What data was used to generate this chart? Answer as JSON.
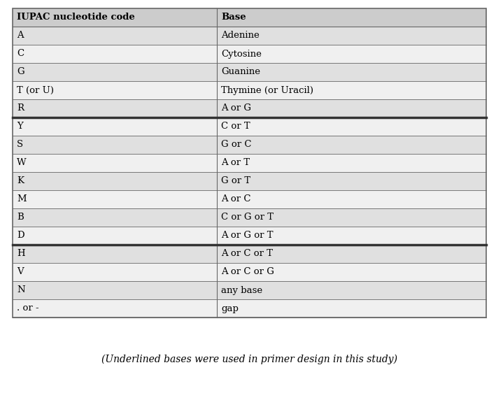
{
  "col1_header": "IUPAC nucleotide code",
  "col2_header": "Base",
  "rows": [
    [
      "A",
      "Adenine"
    ],
    [
      "C",
      "Cytosine"
    ],
    [
      "G",
      "Guanine"
    ],
    [
      "T (or U)",
      "Thymine (or Uracil)"
    ],
    [
      "R",
      "A or G"
    ],
    [
      "Y",
      "C or T"
    ],
    [
      "S",
      "G or C"
    ],
    [
      "W",
      "A or T"
    ],
    [
      "K",
      "G or T"
    ],
    [
      "M",
      "A or C"
    ],
    [
      "B",
      "C or G or T"
    ],
    [
      "D",
      "A or G or T"
    ],
    [
      "H",
      "A or C or T"
    ],
    [
      "V",
      "A or C or G"
    ],
    [
      "N",
      "any base"
    ],
    [
      ". or -",
      "gap"
    ]
  ],
  "thick_line_rows": [
    4,
    11
  ],
  "caption": "(Underlined bases were used in primer design in this study)",
  "header_bg": "#cccccc",
  "row_bg_odd": "#e0e0e0",
  "row_bg_even": "#f0f0f0",
  "border_color": "#666666",
  "thick_color": "#333333",
  "font_size": 9.5,
  "caption_font_size": 10
}
